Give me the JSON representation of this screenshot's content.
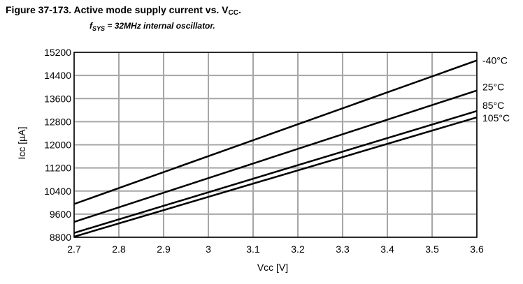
{
  "figure": {
    "title_main": "Figure 37-173.  Active mode supply current vs. V",
    "title_sub": "CC",
    "title_end": ".",
    "subtitle_f": "f",
    "subtitle_sub": "SYS",
    "subtitle_rest": " = 32MHz internal oscillator."
  },
  "chart_data": {
    "type": "line",
    "x": [
      2.7,
      3.6
    ],
    "xlim": [
      2.7,
      3.6
    ],
    "ylim": [
      8800,
      15200
    ],
    "xticks": [
      "2.7",
      "2.8",
      "2.9",
      "3",
      "3.1",
      "3.2",
      "3.3",
      "3.4",
      "3.5",
      "3.6"
    ],
    "yticks": [
      "8800",
      "9600",
      "10400",
      "11200",
      "12000",
      "12800",
      "13600",
      "14400",
      "15200"
    ],
    "xlabel": "Vcc [V]",
    "ylabel": "Icc [µA]",
    "grid": true,
    "legend": "labels at right end of each line",
    "line_color": "#000000",
    "grid_color": "#a6a6a6",
    "series": [
      {
        "name": "-40°C",
        "values": [
          9950,
          14920
        ]
      },
      {
        "name": "25°C",
        "values": [
          9330,
          13880
        ]
      },
      {
        "name": "85°C",
        "values": [
          8950,
          13170
        ]
      },
      {
        "name": "105°C",
        "values": [
          8820,
          12950
        ]
      }
    ]
  }
}
